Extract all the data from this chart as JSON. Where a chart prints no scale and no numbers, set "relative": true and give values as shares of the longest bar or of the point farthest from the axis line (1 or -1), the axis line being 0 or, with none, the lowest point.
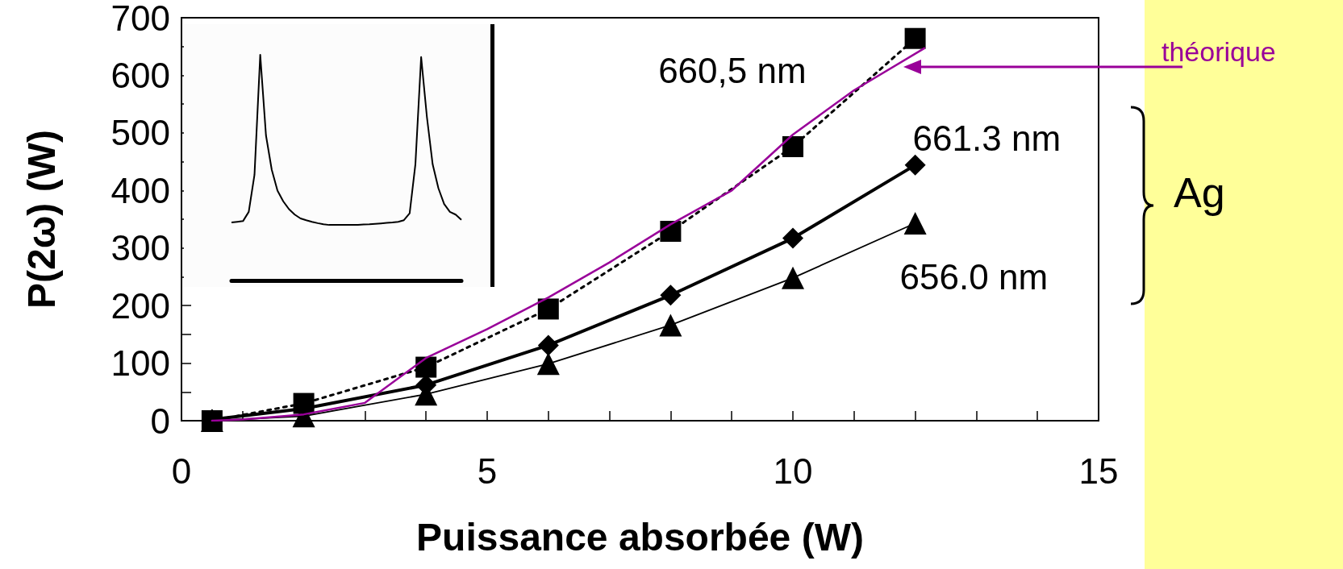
{
  "chart_data": [
    {
      "type": "line",
      "xlabel": "Puissance absorbée (W)",
      "ylabel": "P(2ω) (W)",
      "x": [
        0.5,
        2,
        4,
        6,
        8,
        10,
        12
      ],
      "xlim": [
        0,
        15
      ],
      "ylim": [
        0,
        700
      ],
      "xticks": [
        0,
        {
          "value": 1,
          "label": null
        },
        {
          "value": 2,
          "label": null
        },
        {
          "value": 3,
          "label": null
        },
        {
          "value": 4,
          "label": null
        },
        5,
        {
          "value": 6,
          "label": null
        },
        {
          "value": 7,
          "label": null
        },
        {
          "value": 8,
          "label": null
        },
        {
          "value": 9,
          "label": null
        },
        10,
        {
          "value": 11,
          "label": null
        },
        {
          "value": 12,
          "label": null
        },
        {
          "value": 13,
          "label": null
        },
        {
          "value": 14,
          "label": null
        },
        15
      ],
      "yticks": [
        0,
        {
          "value": 50,
          "label": null
        },
        100,
        {
          "value": 150,
          "label": null
        },
        200,
        {
          "value": 250,
          "label": null
        },
        300,
        {
          "value": 350,
          "label": null
        },
        400,
        {
          "value": 450,
          "label": null
        },
        500,
        {
          "value": 550,
          "label": null
        },
        600,
        {
          "value": 650,
          "label": null
        },
        700
      ],
      "grid": false,
      "series": [
        {
          "name": "660,5 nm",
          "color": "#000000",
          "marker": "square",
          "line_style": "dotted",
          "values": [
            0,
            30,
            93,
            194,
            329,
            476,
            664
          ]
        },
        {
          "name": "661.3 nm",
          "color": "#000000",
          "marker": "diamond",
          "line_style": "solid",
          "values": [
            2,
            21,
            62,
            131,
            218,
            317,
            444
          ]
        },
        {
          "name": "656.0 nm",
          "color": "#000000",
          "marker": "triangle",
          "line_style": "solid",
          "values": [
            0,
            8,
            46,
            99,
            166,
            248,
            343
          ]
        },
        {
          "name": "théorique",
          "color": "#990099",
          "marker": "none",
          "line_style": "solid",
          "x": [
            0.5,
            1,
            2,
            3,
            4,
            5,
            6,
            7,
            8,
            9,
            10,
            11,
            12.15
          ],
          "values": [
            0,
            2,
            11,
            31,
            109,
            159,
            214,
            275,
            341,
            400,
            497,
            574,
            647
          ]
        }
      ],
      "annotations": [
        "Ag"
      ]
    },
    {
      "type": "line",
      "relative": true,
      "color": "#000000",
      "categories": [
        null,
        null,
        null,
        null,
        null,
        null,
        null,
        null,
        null,
        null,
        null,
        null,
        null,
        null,
        null,
        null,
        null,
        null,
        null,
        null,
        null,
        null,
        null,
        null,
        null,
        null,
        null,
        null,
        null,
        null,
        null,
        null,
        null,
        null,
        null,
        null,
        null,
        null,
        null,
        null,
        null
      ],
      "values": [
        0.257,
        0.26,
        0.263,
        0.304,
        0.468,
        1,
        0.643,
        0.491,
        0.398,
        0.351,
        0.316,
        0.292,
        0.275,
        0.267,
        0.26,
        0.254,
        0.249,
        0.246,
        0.246,
        0.246,
        0.246,
        0.246,
        0.246,
        0.248,
        0.249,
        0.251,
        0.253,
        0.255,
        0.257,
        0.26,
        0.267,
        0.298,
        0.515,
        0.99,
        0.725,
        0.515,
        0.409,
        0.339,
        0.304,
        0.292,
        0.269
      ]
    }
  ]
}
